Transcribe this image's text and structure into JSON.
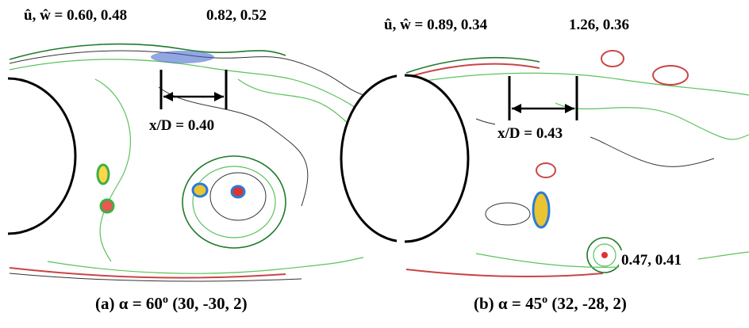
{
  "panels": [
    {
      "velocity_label": "û, ŵ = 0.60, 0.48",
      "second_label": "0.82, 0.52",
      "spacing_label": "x/D = 0.40",
      "caption": {
        "prefix": "(a) α = 60",
        "superscript": "o",
        "suffix": " (30, -30, 2)"
      }
    },
    {
      "velocity_label": "û, ŵ = 0.89, 0.34",
      "second_label": "1.26, 0.36",
      "spacing_label": "x/D = 0.43",
      "third_label": "0.47, 0.41",
      "caption": {
        "prefix": "(b) α = 45",
        "superscript": "o",
        "suffix": " (32, -28, 2)"
      }
    }
  ]
}
